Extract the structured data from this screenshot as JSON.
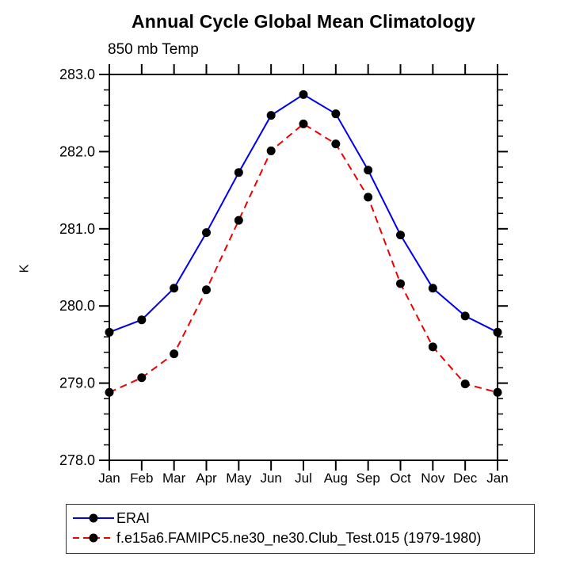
{
  "chart_data": {
    "type": "line",
    "title": "Annual Cycle Global Mean Climatology",
    "subtitle_left": "850 mb Temp",
    "ylabel": "K",
    "ylim": [
      278.0,
      283.0
    ],
    "ytick_step": 1.0,
    "yminor_step": 0.2,
    "ytick_labels": [
      "278.0",
      "279.0",
      "280.0",
      "281.0",
      "282.0",
      "283.0"
    ],
    "categories": [
      "Jan",
      "Feb",
      "Mar",
      "Apr",
      "May",
      "Jun",
      "Jul",
      "Aug",
      "Sep",
      "Oct",
      "Nov",
      "Dec",
      "Jan"
    ],
    "grid": false,
    "legend_position": "bottom-left",
    "frame_style": "box-with-outward-ticks",
    "series": [
      {
        "name": "ERAI",
        "color": "#0000ee",
        "line_style": "solid",
        "marker": "circle",
        "marker_color": "#000000",
        "values": [
          279.66,
          279.82,
          280.23,
          280.95,
          281.73,
          282.47,
          282.74,
          282.49,
          281.76,
          280.92,
          280.23,
          279.87,
          279.66
        ]
      },
      {
        "name": "f.e15a6.FAMIPC5.ne30_ne30.Club_Test.015 (1979-1980)",
        "color": "#ee0000",
        "line_style": "dashed",
        "marker": "circle",
        "marker_color": "#000000",
        "values": [
          278.88,
          279.07,
          279.38,
          280.21,
          281.11,
          282.01,
          282.36,
          282.1,
          281.41,
          280.29,
          279.47,
          278.99,
          278.88
        ]
      }
    ]
  }
}
